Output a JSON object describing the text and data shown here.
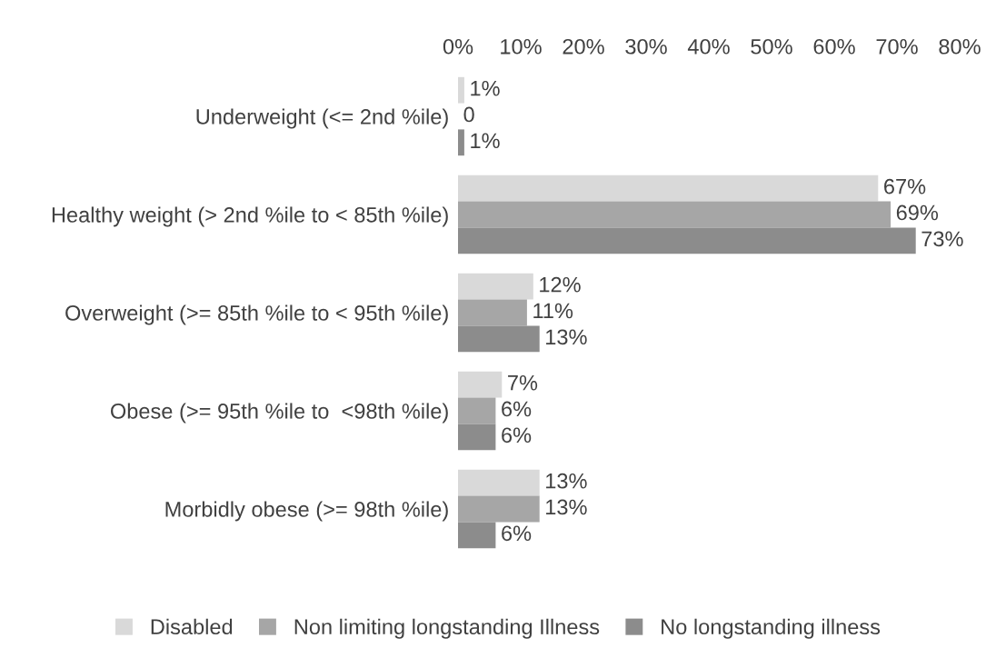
{
  "chart_data": {
    "type": "bar",
    "orientation": "horizontal",
    "categories": [
      "Underweight (<= 2nd %ile)",
      "Healthy weight (> 2nd %ile to < 85th %ile)",
      "Overweight (>= 85th %ile to < 95th %ile)",
      "Obese (>= 95th %ile to  <98th %ile)",
      "Morbidly obese (>= 98th %ile)"
    ],
    "series": [
      {
        "name": "Disabled",
        "color": "#d9d9d9",
        "values": [
          1,
          67,
          12,
          7,
          13
        ],
        "value_labels": [
          "1%",
          "67%",
          "12%",
          "7%",
          "13%"
        ]
      },
      {
        "name": "Non limiting longstanding Illness",
        "color": "#a6a6a6",
        "values": [
          0,
          69,
          11,
          6,
          13
        ],
        "value_labels": [
          "0",
          "69%",
          "11%",
          "6%",
          "13%"
        ]
      },
      {
        "name": "No longstanding illness",
        "color": "#8c8c8c",
        "values": [
          1,
          73,
          13,
          6,
          6
        ],
        "value_labels": [
          "1%",
          "73%",
          "13%",
          "6%",
          "6%"
        ]
      }
    ],
    "xlim": [
      0,
      80
    ],
    "xticks": [
      {
        "value": 0,
        "label": "0%"
      },
      {
        "value": 10,
        "label": "10%"
      },
      {
        "value": 20,
        "label": "20%"
      },
      {
        "value": 30,
        "label": "30%"
      },
      {
        "value": 40,
        "label": "40%"
      },
      {
        "value": 50,
        "label": "50%"
      },
      {
        "value": 60,
        "label": "60%"
      },
      {
        "value": 70,
        "label": "70%"
      },
      {
        "value": 80,
        "label": "80%"
      }
    ],
    "grid": false,
    "legend": "bottom"
  }
}
